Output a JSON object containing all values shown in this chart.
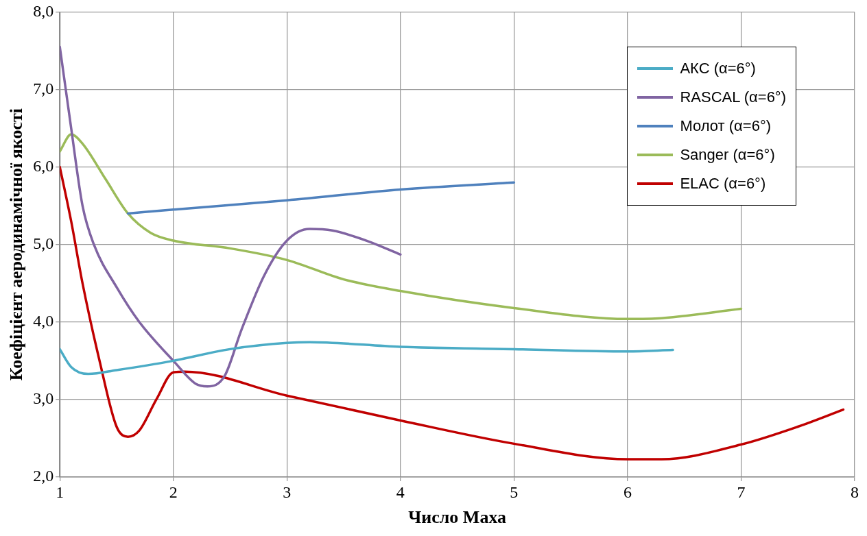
{
  "chart_data": {
    "type": "line",
    "xlabel": "Число Маха",
    "ylabel": "Коефіцієнт аеродинамічної якості",
    "xlim": [
      1,
      8
    ],
    "xticks": [
      1,
      2,
      3,
      4,
      5,
      6,
      7,
      8
    ],
    "ylim": [
      2,
      8
    ],
    "yticks": [
      {
        "value": 2,
        "label": "2,0"
      },
      {
        "value": 3,
        "label": "3,0"
      },
      {
        "value": 4,
        "label": "4,0"
      },
      {
        "value": 5,
        "label": "5,0"
      },
      {
        "value": 6,
        "label": "6,0"
      },
      {
        "value": 7,
        "label": "7,0"
      },
      {
        "value": 8,
        "label": "8,0"
      }
    ],
    "grid": true,
    "legend": "top right",
    "marker": "none",
    "line_style": "solid",
    "series": [
      {
        "name": "АКС (α=6°)",
        "color": "#4bacc6",
        "x": [
          1,
          1.1,
          1.25,
          1.5,
          2,
          2.5,
          3,
          3.2,
          4,
          5,
          6,
          6.4
        ],
        "values": [
          3.65,
          3.42,
          3.33,
          3.38,
          3.5,
          3.65,
          3.73,
          3.74,
          3.68,
          3.65,
          3.62,
          3.64
        ]
      },
      {
        "name": "RASCAL (α=6°)",
        "color": "#8064a2",
        "x": [
          1,
          1.1,
          1.2,
          1.3,
          1.5,
          1.7,
          2,
          2.2,
          2.3,
          2.45,
          2.6,
          2.8,
          3,
          3.2,
          3.4,
          3.7,
          4
        ],
        "values": [
          7.55,
          6.5,
          5.5,
          5.0,
          4.45,
          4.0,
          3.5,
          3.2,
          3.17,
          3.3,
          3.9,
          4.6,
          5.05,
          5.2,
          5.18,
          5.05,
          4.87
        ]
      },
      {
        "name": "Молот (α=6°)",
        "color": "#4f81bd",
        "x": [
          1.6,
          2,
          3,
          4,
          5
        ],
        "values": [
          5.4,
          5.45,
          5.57,
          5.71,
          5.8
        ]
      },
      {
        "name": "Sanger (α=6°)",
        "color": "#9bbb59",
        "x": [
          1,
          1.1,
          1.2,
          1.4,
          1.6,
          1.8,
          2,
          2.5,
          3,
          3.5,
          4,
          5,
          6,
          6.3,
          7
        ],
        "values": [
          6.2,
          6.42,
          6.3,
          5.85,
          5.4,
          5.15,
          5.05,
          4.95,
          4.8,
          4.55,
          4.4,
          4.18,
          4.04,
          4.05,
          4.17
        ]
      },
      {
        "name": "ELAC (α=6°)",
        "color": "#c00000",
        "x": [
          1,
          1.1,
          1.2,
          1.35,
          1.5,
          1.6,
          1.7,
          1.85,
          2,
          2.1,
          3,
          4,
          5,
          6,
          6.3,
          7,
          7.5,
          7.9
        ],
        "values": [
          6.0,
          5.3,
          4.5,
          3.5,
          2.65,
          2.52,
          2.6,
          3.0,
          3.35,
          3.36,
          3.05,
          2.73,
          2.43,
          2.23,
          2.23,
          2.42,
          2.65,
          2.87
        ]
      }
    ]
  }
}
